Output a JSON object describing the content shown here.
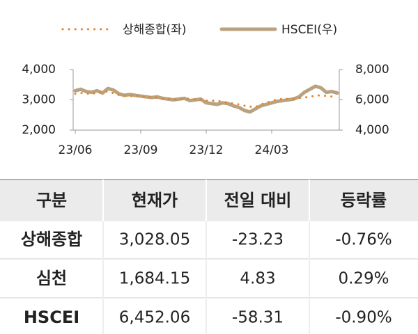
{
  "chart_data": {
    "type": "line",
    "categories": [
      "23/06",
      null,
      null,
      null,
      null,
      null,
      null,
      null,
      null,
      null,
      null,
      null,
      "23/09",
      null,
      null,
      null,
      null,
      null,
      null,
      null,
      null,
      null,
      null,
      null,
      "23/12",
      null,
      null,
      null,
      null,
      null,
      null,
      null,
      null,
      null,
      null,
      null,
      "24/03",
      null,
      null,
      null,
      null,
      null,
      null,
      null,
      null,
      null,
      null,
      null,
      null
    ],
    "series": [
      {
        "name": "상해종합(좌)",
        "color": "#e8822a",
        "style": "dotted",
        "values": [
          3200,
          3230,
          3210,
          3190,
          3240,
          3250,
          3280,
          3220,
          3160,
          3130,
          3120,
          3140,
          3110,
          3100,
          3080,
          3070,
          3050,
          3040,
          3020,
          3010,
          3030,
          3040,
          3020,
          3000,
          2970,
          2975,
          2960,
          2950,
          2900,
          2880,
          2850,
          2810,
          2780,
          2760,
          2850,
          2900,
          2960,
          3010,
          3040,
          3030,
          3050,
          3060,
          3080,
          3100,
          3140,
          3150,
          3130,
          3110,
          3100
        ]
      },
      {
        "name": "HSCEI(우)",
        "color": "#b9a27f",
        "style": "solid",
        "axis": "y2",
        "values": [
          6600,
          6700,
          6550,
          6500,
          6600,
          6450,
          6750,
          6650,
          6400,
          6300,
          6350,
          6300,
          6250,
          6200,
          6150,
          6200,
          6100,
          6050,
          6000,
          6050,
          6100,
          5950,
          6000,
          6050,
          5800,
          5750,
          5700,
          5800,
          5750,
          5600,
          5500,
          5300,
          5200,
          5400,
          5600,
          5700,
          5800,
          5900,
          5950,
          6000,
          6050,
          6200,
          6500,
          6700,
          6900,
          6800,
          6500,
          6550,
          6450
        ]
      }
    ],
    "ylim": [
      2000,
      4000
    ],
    "yticks": [
      {
        "value": 2000,
        "label": "2,000"
      },
      {
        "value": 3000,
        "label": "3,000"
      },
      {
        "value": 4000,
        "label": "4,000"
      }
    ],
    "y2lim": [
      4000,
      8000
    ],
    "y2ticks": [
      {
        "value": 4000,
        "label": "4,000"
      },
      {
        "value": 6000,
        "label": "6,000"
      },
      {
        "value": 8000,
        "label": "8,000"
      }
    ],
    "grid": false,
    "legend": "top"
  },
  "table": {
    "header": [
      "구분",
      "현재가",
      "전일 대비",
      "등락률"
    ],
    "rows": [
      [
        "상해종합",
        "3,028.05",
        "-23.23",
        "-0.76%"
      ],
      [
        "심천",
        "1,684.15",
        "4.83",
        "0.29%"
      ],
      [
        "HSCEI",
        "6,452.06",
        "-58.31",
        "-0.90%"
      ]
    ]
  }
}
